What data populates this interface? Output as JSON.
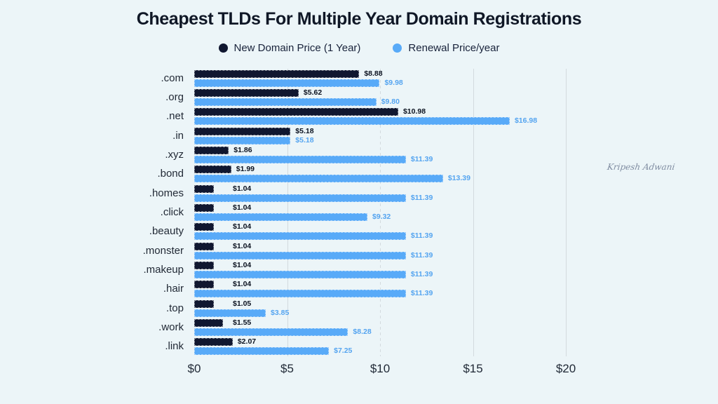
{
  "title": "Cheapest TLDs For Multiple Year Domain Registrations",
  "legend": {
    "items": [
      {
        "label": "New Domain Price (1 Year)",
        "color": "#101730"
      },
      {
        "label": "Renewal Price/year",
        "color": "#58aaf8"
      }
    ]
  },
  "watermark": "Kripesh Adwani",
  "colors": {
    "background": "#ecf5f8",
    "title_text": "#0f1726",
    "legend_text": "#18223a",
    "new_domain_bar": "#101730",
    "renewal_bar": "#58aaf8",
    "new_domain_value_text": "#0b1220",
    "renewal_value_text": "#54a4f0",
    "gridline": "#d3dade"
  },
  "chart_data": {
    "type": "bar",
    "orientation": "horizontal",
    "title": "Cheapest TLDs For Multiple Year Domain Registrations",
    "categories": [
      ".com",
      ".org",
      ".net",
      ".in",
      ".xyz",
      ".bond",
      ".homes",
      ".click",
      ".beauty",
      ".monster",
      ".makeup",
      ".hair",
      ".top",
      ".work",
      ".link"
    ],
    "series": [
      {
        "name": "New Domain Price (1 Year)",
        "color": "#101730",
        "values": [
          8.88,
          5.62,
          10.98,
          5.18,
          1.86,
          1.99,
          1.04,
          1.04,
          1.04,
          1.04,
          1.04,
          1.04,
          1.05,
          1.55,
          2.07
        ],
        "labels": [
          "$8.88",
          "$5.62",
          "$10.98",
          "$5.18",
          "$1.86",
          "$1.99",
          "$1.04",
          "$1.04",
          "$1.04",
          "$1.04",
          "$1.04",
          "$1.04",
          "$1.05",
          "$1.55",
          "$2.07"
        ]
      },
      {
        "name": "Renewal Price/year",
        "color": "#58aaf8",
        "values": [
          9.98,
          9.8,
          16.98,
          5.18,
          11.39,
          13.39,
          11.39,
          9.32,
          11.39,
          11.39,
          11.39,
          11.39,
          3.85,
          8.28,
          7.25
        ],
        "labels": [
          "$9.98",
          "$9.80",
          "$16.98",
          "$5.18",
          "$11.39",
          "$13.39",
          "$11.39",
          "$9.32",
          "$11.39",
          "$11.39",
          "$11.39",
          "$11.39",
          "$3.85",
          "$8.28",
          "$7.25"
        ]
      }
    ],
    "xlabel": "",
    "ylabel": "",
    "xlim": [
      0,
      20
    ],
    "x_ticks": [
      {
        "value": 0,
        "label": "$0"
      },
      {
        "value": 5,
        "label": "$5"
      },
      {
        "value": 10,
        "label": "$10"
      },
      {
        "value": 15,
        "label": "$15"
      },
      {
        "value": 20,
        "label": "$20"
      }
    ],
    "grid": "vertical",
    "legend_position": "top"
  }
}
